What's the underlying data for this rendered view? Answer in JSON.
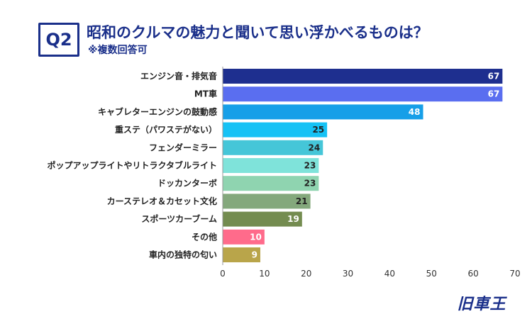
{
  "header": {
    "badge": "Q2",
    "title": "昭和のクルマの魅力と聞いて思い浮かべるものは？",
    "subtitle": "※複数回答可"
  },
  "logo": {
    "text": "旧車王"
  },
  "chart_data": {
    "type": "bar",
    "orientation": "horizontal",
    "title": "昭和のクルマの魅力と聞いて思い浮かべるものは？",
    "xlim": [
      0,
      70
    ],
    "xticks": [
      0,
      10,
      20,
      30,
      40,
      50,
      60,
      70
    ],
    "grid": false,
    "categories": [
      "エンジン音・排気音",
      "MT車",
      "キャブレターエンジンの鼓動感",
      "重ステ（パワステがない）",
      "フェンダーミラー",
      "ポップアップライトやリトラクタブルライト",
      "ドッカンターボ",
      "カーステレオ＆カセット文化",
      "スポーツカーブーム",
      "その他",
      "車内の独特の匂い"
    ],
    "values": [
      67,
      67,
      48,
      25,
      24,
      23,
      23,
      21,
      19,
      10,
      9
    ],
    "colors": [
      "#1e2f8f",
      "#5a6ef0",
      "#169fe8",
      "#16c2f5",
      "#45c6d8",
      "#7fe3da",
      "#8fd4b0",
      "#84a87c",
      "#748c50",
      "#ff6b8b",
      "#b9a54a"
    ],
    "label_colors": [
      "#ffffff",
      "#ffffff",
      "#ffffff",
      "#222222",
      "#222222",
      "#222222",
      "#222222",
      "#222222",
      "#ffffff",
      "#ffffff",
      "#ffffff"
    ]
  }
}
